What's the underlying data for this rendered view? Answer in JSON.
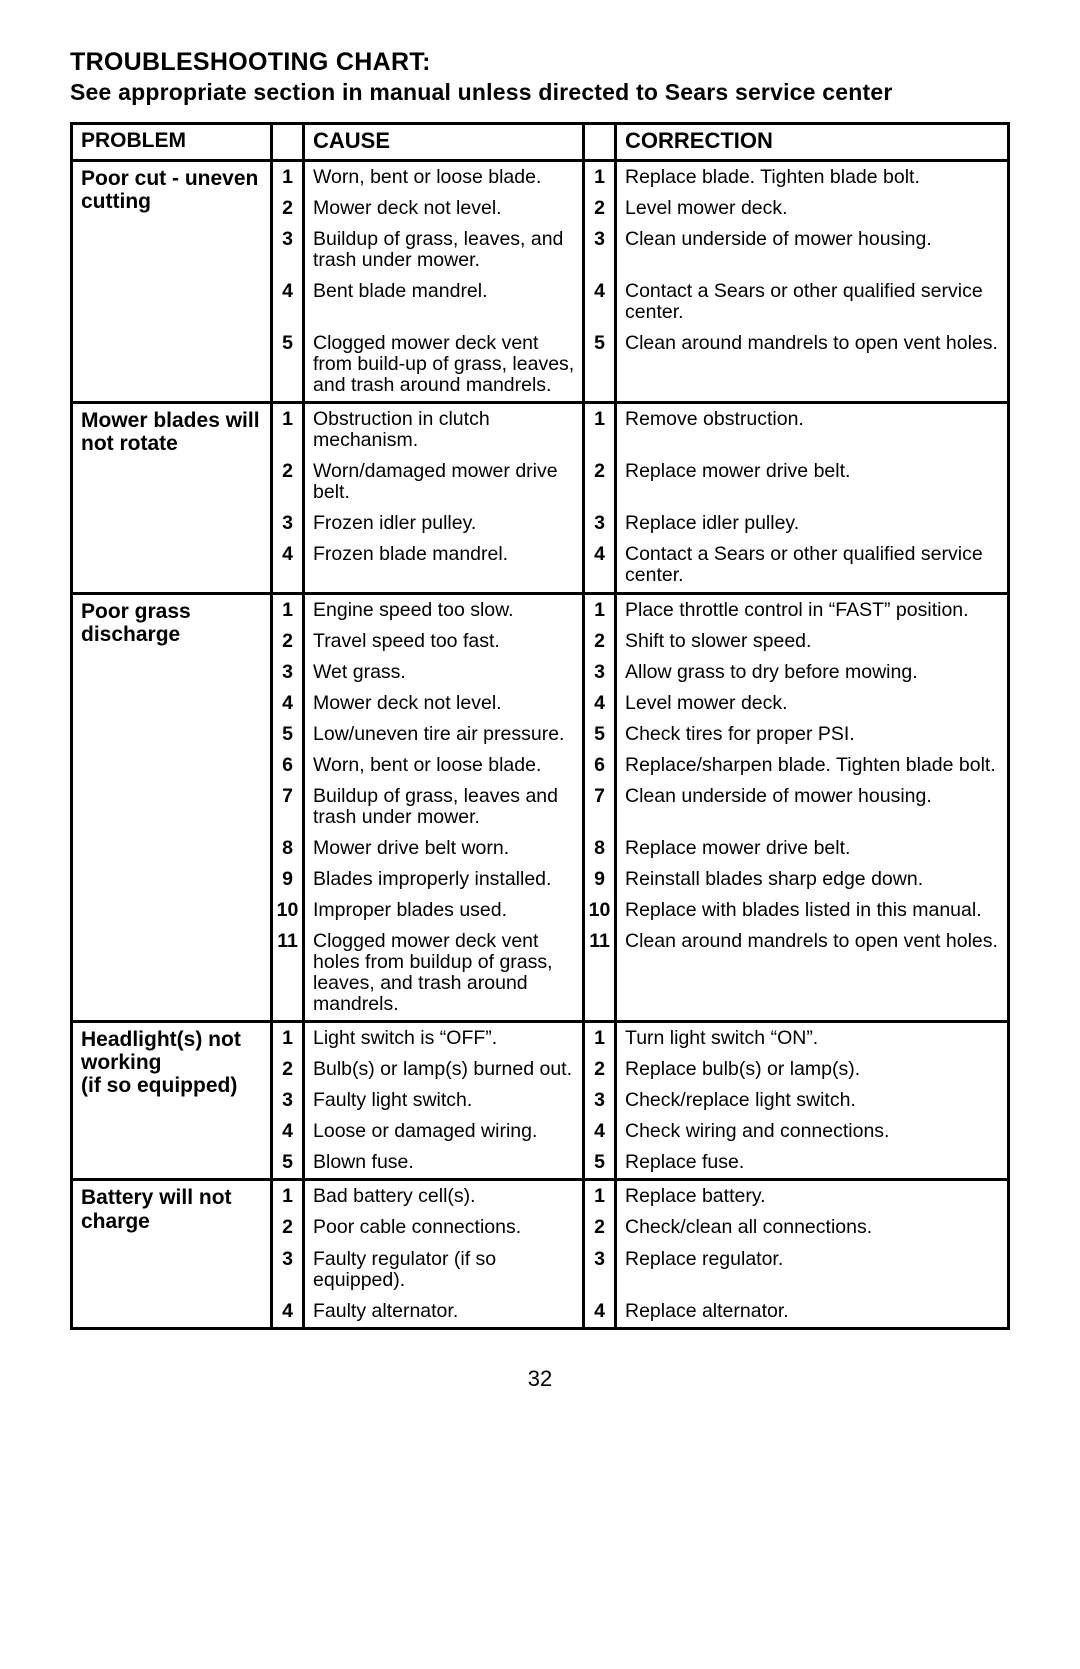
{
  "title": "TROUBLESHOOTING CHART:",
  "subtitle": "See appropriate section in manual unless directed to Sears service center",
  "headers": {
    "problem": "PROBLEM",
    "cause": "CAUSE",
    "correction": "CORRECTION"
  },
  "page_number": "32",
  "groups": [
    {
      "problem": "Poor cut - uneven cutting",
      "rows": [
        {
          "n": "1",
          "cause": "Worn, bent or loose blade.",
          "corr": "Replace blade. Tighten blade bolt."
        },
        {
          "n": "2",
          "cause": "Mower deck not level.",
          "corr": "Level mower deck."
        },
        {
          "n": "3",
          "cause": "Buildup of grass, leaves, and trash under mower.",
          "corr": "Clean underside of mower housing."
        },
        {
          "n": "4",
          "cause": "Bent blade mandrel.",
          "corr": "Contact a Sears or other qualified service center."
        },
        {
          "n": "5",
          "cause": "Clogged mower deck vent from build-up of grass, leaves, and trash around mandrels.",
          "corr": "Clean around mandrels to open vent holes."
        }
      ]
    },
    {
      "problem": "Mower blades will not rotate",
      "rows": [
        {
          "n": "1",
          "cause": "Obstruction in clutch mechanism.",
          "corr": "Remove obstruction."
        },
        {
          "n": "2",
          "cause": "Worn/damaged mower drive belt.",
          "corr": "Replace mower drive belt."
        },
        {
          "n": "3",
          "cause": "Frozen idler pulley.",
          "corr": "Replace idler pulley."
        },
        {
          "n": "4",
          "cause": "Frozen blade mandrel.",
          "corr": "Contact a Sears or other qualified service center."
        }
      ]
    },
    {
      "problem": "Poor grass discharge",
      "rows": [
        {
          "n": "1",
          "cause": "Engine speed too slow.",
          "corr": "Place throttle control in “FAST” position."
        },
        {
          "n": "2",
          "cause": "Travel speed too fast.",
          "corr": "Shift to slower speed."
        },
        {
          "n": "3",
          "cause": "Wet grass.",
          "corr": "Allow grass to dry before mowing."
        },
        {
          "n": "4",
          "cause": "Mower deck not level.",
          "corr": "Level mower deck."
        },
        {
          "n": "5",
          "cause": "Low/uneven tire air pressure.",
          "corr": "Check tires for proper PSI."
        },
        {
          "n": "6",
          "cause": "Worn, bent or loose blade.",
          "corr": "Replace/sharpen blade. Tighten blade bolt."
        },
        {
          "n": "7",
          "cause": "Buildup of grass, leaves and trash under mower.",
          "corr": "Clean underside of mower housing."
        },
        {
          "n": "8",
          "cause": "Mower drive belt worn.",
          "corr": "Replace mower drive belt."
        },
        {
          "n": "9",
          "cause": "Blades improperly installed.",
          "corr": "Reinstall blades sharp edge down."
        },
        {
          "n": "10",
          "cause": "Improper blades used.",
          "corr": "Replace with blades listed in this manual."
        },
        {
          "n": "11",
          "cause": "Clogged mower deck vent holes from buildup of grass, leaves, and trash around mandrels.",
          "corr": "Clean around mandrels to open vent holes."
        }
      ]
    },
    {
      "problem": "Headlight(s) not working\n(if so equipped)",
      "rows": [
        {
          "n": "1",
          "cause": "Light switch is “OFF”.",
          "corr": "Turn light switch “ON”."
        },
        {
          "n": "2",
          "cause": "Bulb(s) or lamp(s) burned out.",
          "corr": "Replace bulb(s) or lamp(s)."
        },
        {
          "n": "3",
          "cause": "Faulty light switch.",
          "corr": "Check/replace light switch."
        },
        {
          "n": "4",
          "cause": "Loose or damaged wiring.",
          "corr": "Check wiring and connections."
        },
        {
          "n": "5",
          "cause": "Blown fuse.",
          "corr": "Replace fuse."
        }
      ]
    },
    {
      "problem": "Battery will not charge",
      "rows": [
        {
          "n": "1",
          "cause": "Bad battery cell(s).",
          "corr": "Replace battery."
        },
        {
          "n": "2",
          "cause": "Poor cable connections.",
          "corr": "Check/clean all connections."
        },
        {
          "n": "3",
          "cause": "Faulty regulator (if so equipped).",
          "corr": "Replace regulator."
        },
        {
          "n": "4",
          "cause": "Faulty alternator.",
          "corr": "Replace alternator."
        }
      ]
    }
  ]
}
